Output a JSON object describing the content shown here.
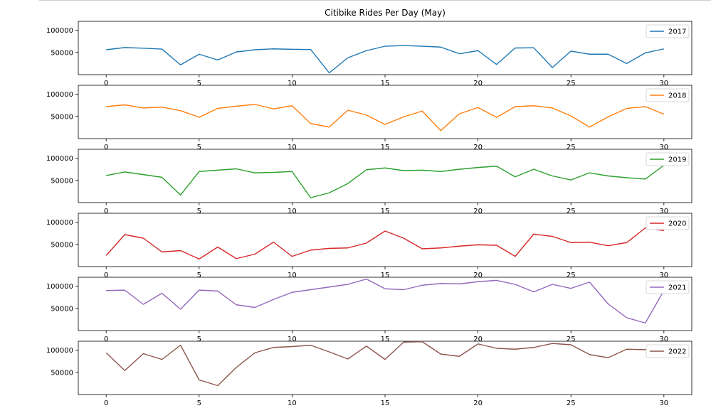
{
  "chart_data": {
    "type": "line",
    "title": "Citibike Rides Per Day (May)",
    "xlim": [
      -1.5,
      31.5
    ],
    "ylim": [
      0,
      120000
    ],
    "xticks": [
      0,
      5,
      10,
      15,
      20,
      25,
      30
    ],
    "yticks": [
      50000,
      100000
    ],
    "legend_position": "top-right",
    "x": [
      0,
      1,
      2,
      3,
      4,
      5,
      6,
      7,
      8,
      9,
      10,
      11,
      12,
      13,
      14,
      15,
      16,
      17,
      18,
      19,
      20,
      21,
      22,
      23,
      24,
      25,
      26,
      27,
      28,
      29,
      30
    ],
    "series": [
      {
        "name": "2017",
        "color": "#1f77b4",
        "values": [
          56000,
          61000,
          59500,
          57500,
          22000,
          46000,
          33000,
          51000,
          56000,
          58000,
          57000,
          56500,
          4000,
          38000,
          54000,
          64000,
          65500,
          64000,
          62000,
          47000,
          54000,
          23000,
          60000,
          60500,
          16000,
          53000,
          46000,
          46000,
          25000,
          49000,
          58000
        ]
      },
      {
        "name": "2018",
        "color": "#ff7f0e",
        "values": [
          72000,
          76000,
          69000,
          71000,
          63000,
          48000,
          68000,
          73000,
          77000,
          67000,
          74000,
          34000,
          26000,
          64000,
          53000,
          32000,
          49000,
          62000,
          18000,
          56000,
          70000,
          48000,
          72000,
          74000,
          69000,
          51000,
          26000,
          49000,
          68000,
          72000,
          55000
        ]
      },
      {
        "name": "2019",
        "color": "#2ca02c",
        "values": [
          61000,
          69000,
          63000,
          57000,
          17000,
          70000,
          73000,
          76000,
          67000,
          68000,
          70000,
          11000,
          22000,
          43000,
          74000,
          78000,
          72000,
          73000,
          70000,
          75000,
          79000,
          82000,
          58000,
          75000,
          60000,
          51000,
          67000,
          60000,
          56000,
          53000,
          84000
        ]
      },
      {
        "name": "2020",
        "color": "#d62728",
        "values": [
          25000,
          72000,
          64000,
          33000,
          36000,
          17000,
          44000,
          18000,
          28000,
          55000,
          23000,
          37000,
          41000,
          42000,
          53000,
          80000,
          64000,
          40000,
          42000,
          46000,
          49000,
          48000,
          23000,
          73000,
          68000,
          54000,
          55000,
          47000,
          54000,
          87000,
          81000
        ]
      },
      {
        "name": "2021",
        "color": "#9467bd",
        "values": [
          90000,
          91000,
          59000,
          84000,
          48000,
          91000,
          89000,
          58000,
          52000,
          70000,
          86000,
          92000,
          98000,
          104000,
          116000,
          94000,
          92000,
          102000,
          106000,
          105000,
          110000,
          113000,
          104000,
          87000,
          104000,
          95000,
          109000,
          60000,
          29000,
          17000,
          90000
        ]
      },
      {
        "name": "2022",
        "color": "#8c564b",
        "values": [
          94000,
          54000,
          92000,
          79000,
          111000,
          33000,
          20000,
          61000,
          94000,
          106000,
          108000,
          111000,
          96000,
          80000,
          109000,
          79000,
          118000,
          119000,
          91000,
          86000,
          114000,
          104000,
          102000,
          106000,
          115000,
          112000,
          90000,
          83000,
          102000,
          101000,
          102000
        ]
      }
    ]
  }
}
